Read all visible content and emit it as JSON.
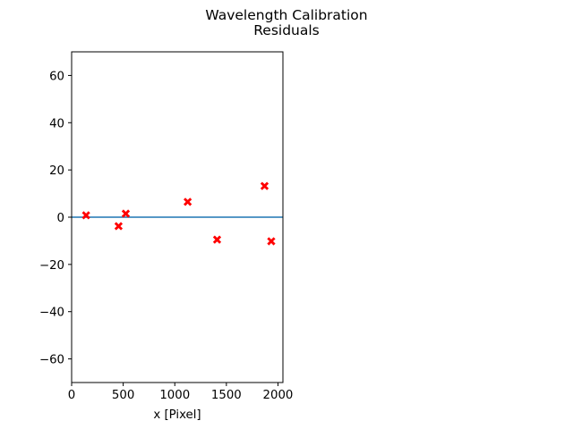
{
  "chart_data": {
    "type": "scatter",
    "title": [
      "Wavelength Calibration",
      "Residuals"
    ],
    "xlabel": "x [Pixel]",
    "ylabel": "",
    "xlim": [
      0,
      2048
    ],
    "ylim": [
      -70,
      70
    ],
    "x_ticks": [
      0,
      500,
      1000,
      1500,
      2000
    ],
    "y_ticks": [
      -60,
      -40,
      -20,
      0,
      20,
      40,
      60
    ],
    "x_tick_labels": [
      "0",
      "500",
      "1000",
      "1500",
      "2000"
    ],
    "y_tick_labels": [
      "−60",
      "−40",
      "−20",
      "0",
      "20",
      "40",
      "60"
    ],
    "grid": false,
    "reference_line": {
      "y": 0,
      "color": "#1f77b4"
    },
    "series": [
      {
        "marker": "X",
        "color": "#ff0000",
        "points": [
          {
            "x": 140,
            "y": 0.8
          },
          {
            "x": 455,
            "y": -3.8
          },
          {
            "x": 525,
            "y": 1.5
          },
          {
            "x": 1125,
            "y": 6.5
          },
          {
            "x": 1410,
            "y": -9.5
          },
          {
            "x": 1870,
            "y": 13.2
          },
          {
            "x": 1935,
            "y": -10.2
          }
        ]
      }
    ]
  }
}
